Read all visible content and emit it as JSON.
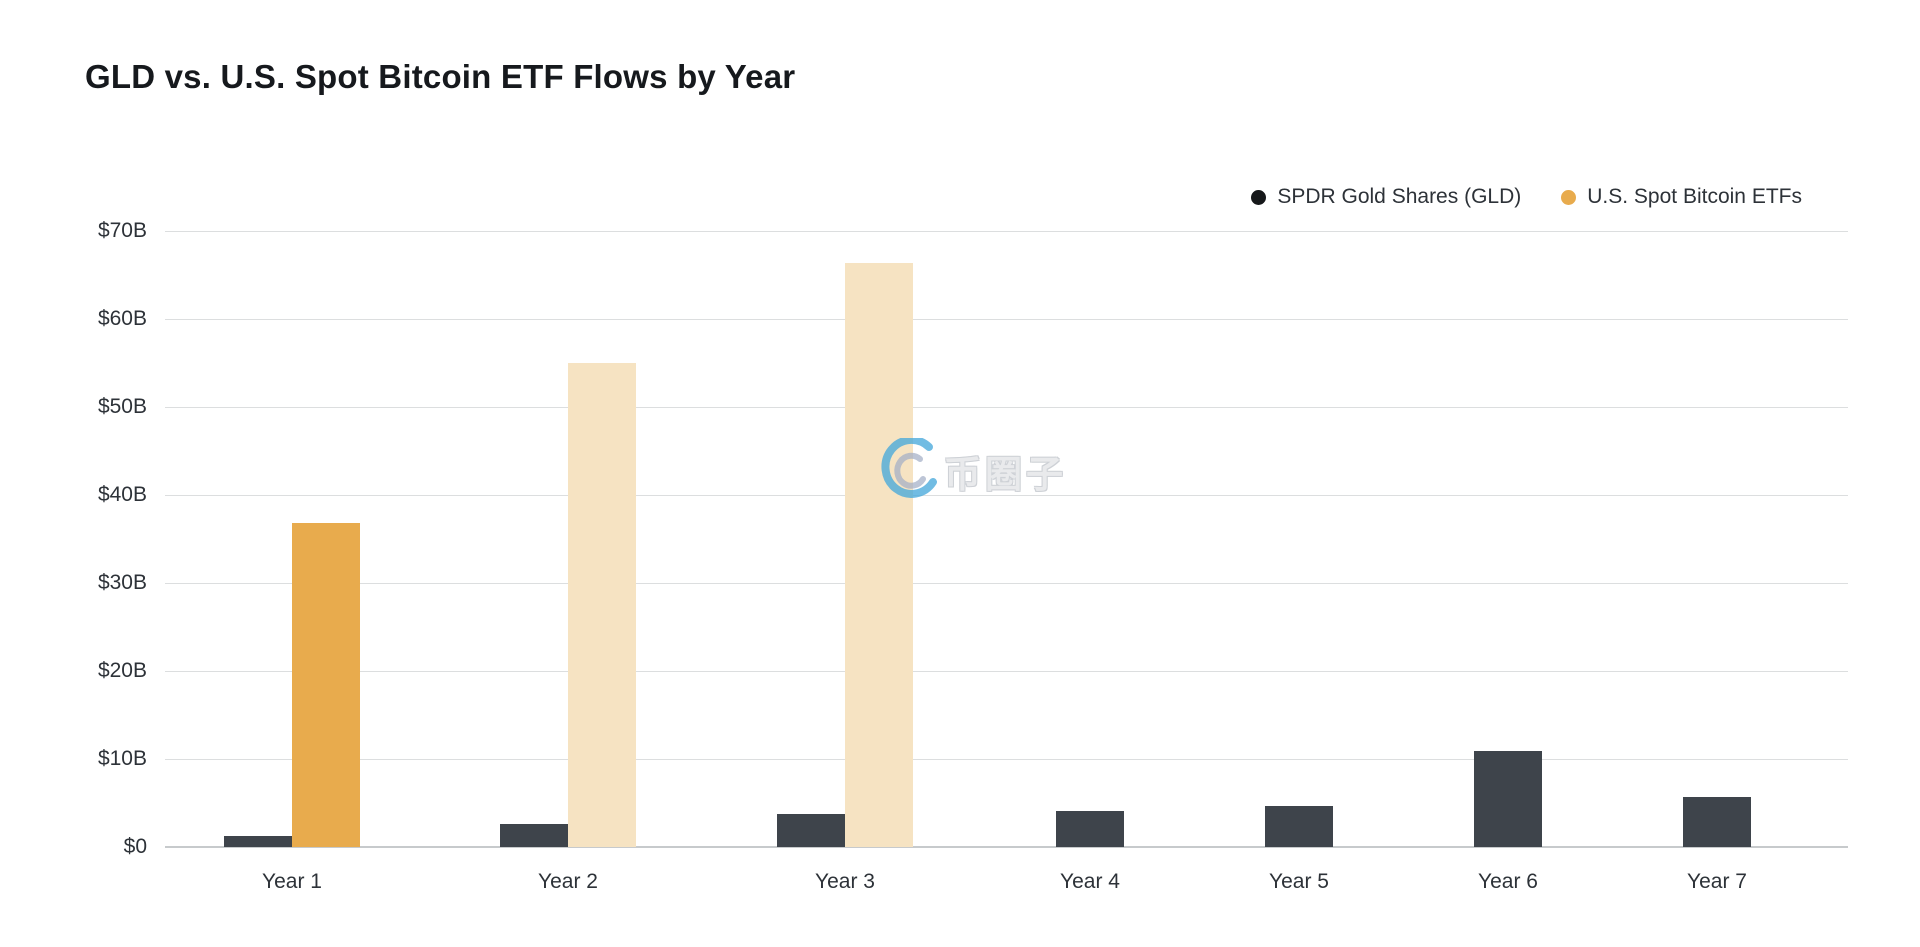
{
  "title": "GLD vs. U.S. Spot Bitcoin ETF Flows by Year",
  "legend": {
    "items": [
      {
        "label": "SPDR Gold Shares (GLD)",
        "color": "#16181a"
      },
      {
        "label": "U.S. Spot Bitcoin ETFs",
        "color": "#e8ab4d"
      }
    ]
  },
  "watermark": {
    "logo": "swirl-logo",
    "text": "币圈子"
  },
  "colors": {
    "gld_bar": "#3e444b",
    "btc_bar": "#e8ab4d",
    "btc_bar_faded": "#f6e3c2",
    "gridline": "#dcdedf",
    "axis_text": "#2d3238"
  },
  "chart_data": {
    "type": "bar",
    "categories": [
      "Year 1",
      "Year 2",
      "Year 3",
      "Year 4",
      "Year 5",
      "Year 6",
      "Year 7"
    ],
    "series": [
      {
        "name": "SPDR Gold Shares (GLD)",
        "color": "#3e444b",
        "values": [
          1.2,
          2.6,
          3.8,
          4.1,
          4.7,
          10.9,
          5.7
        ]
      },
      {
        "name": "U.S. Spot Bitcoin ETFs",
        "color": "#e8ab4d",
        "faded_color": "#f6e3c2",
        "values": [
          36.8,
          55.0,
          66.4,
          null,
          null,
          null,
          null
        ],
        "faded": [
          false,
          true,
          true,
          null,
          null,
          null,
          null
        ]
      }
    ],
    "title": "GLD vs. U.S. Spot Bitcoin ETF Flows by Year",
    "xlabel": "",
    "ylabel": "",
    "yticks": [
      "$0",
      "$10B",
      "$20B",
      "$30B",
      "$40B",
      "$50B",
      "$60B",
      "$70B"
    ],
    "ylim": [
      0,
      70
    ],
    "grid": true,
    "legend_position": "top-right"
  }
}
